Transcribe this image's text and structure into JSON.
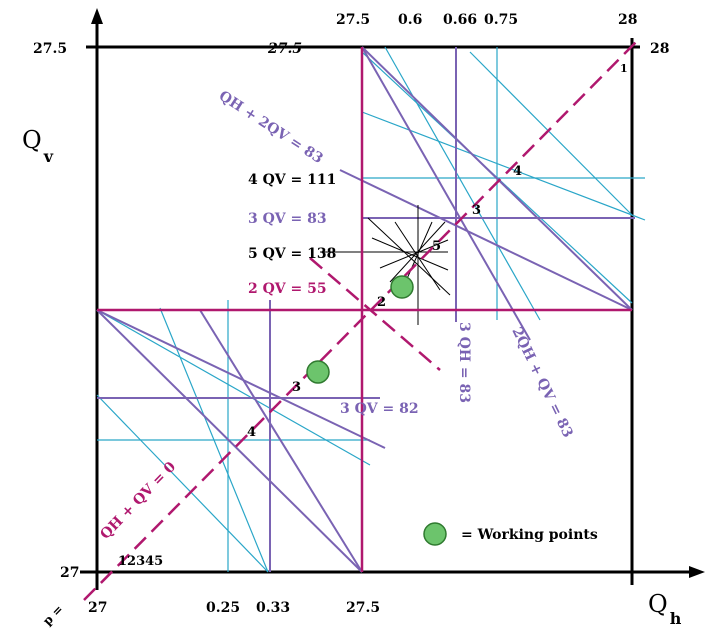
{
  "axes": {
    "x_label_main": "Q",
    "x_label_sub": "h",
    "y_label_main": "Q",
    "y_label_sub": "v"
  },
  "ticks": {
    "bottom": [
      "27",
      "0.25",
      "0.33",
      "27.5"
    ],
    "top": [
      "27.5",
      "0.6",
      "0.66",
      "0.75",
      "28"
    ],
    "left": [
      "27.5",
      "27"
    ],
    "inner_top": "27.5",
    "right_corner": "28",
    "corner_bottom_left": "12345",
    "corner_top_right": "1"
  },
  "labels": {
    "qh_2qv": "QH + 2QV = 83",
    "four_qv": "4 QV = 111",
    "three_qv_83": "3 QV  = 83",
    "five_qv": "5 QV = 138",
    "two_qv": "2 QV = 55",
    "three_qv_82": "3 QV = 82",
    "three_qh": "3 QH = 83",
    "two_qh_qv": "2QH + QV = 83",
    "qh_qv_0": "QH + QV = 0",
    "p_eq": "p ="
  },
  "point_numbers": {
    "n4_top": "4",
    "n3_top": "3",
    "n5": "5",
    "n2": "2",
    "n3_bottom": "3",
    "n4_bottom": "4"
  },
  "legend": {
    "text": "= Working points"
  },
  "colors": {
    "black": "#000000",
    "magenta": "#b0186e",
    "purple": "#7a63b3",
    "cyan": "#2aa6c8",
    "green_fill": "#6cc46c",
    "green_stroke": "#2f7a2f"
  }
}
